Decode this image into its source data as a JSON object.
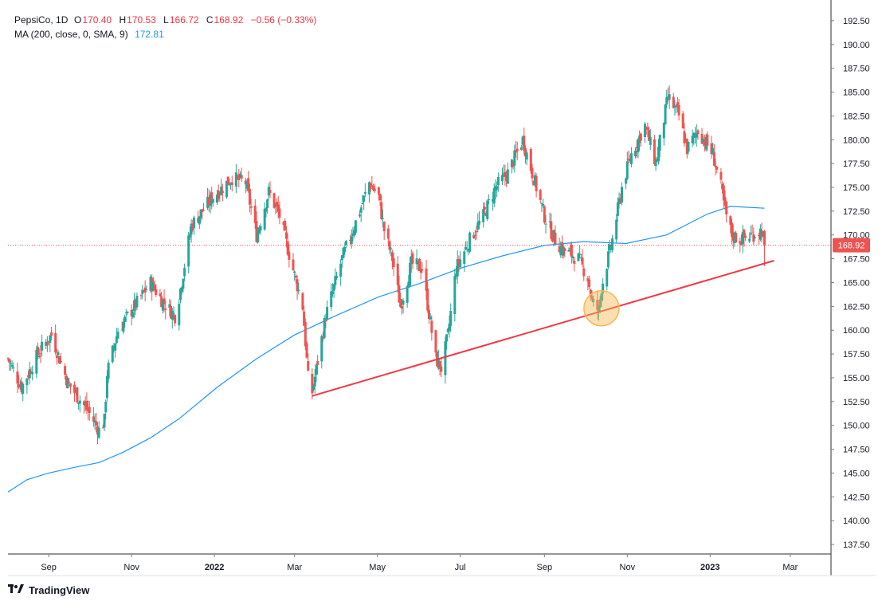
{
  "header": {
    "symbol": "PepsiCo, 1D",
    "open_label": "O",
    "open": "170.40",
    "high_label": "H",
    "high": "170.53",
    "low_label": "L",
    "low": "166.72",
    "close_label": "C",
    "close": "168.92",
    "change": "−0.56 (−0.33%)",
    "ma_label": "MA (200, close, 0, SMA, 9)",
    "ma_value": "172.81"
  },
  "brand": {
    "name": "TradingView"
  },
  "colors": {
    "up": "#26a69a",
    "down": "#ef5350",
    "ma": "#2196f3",
    "trendline": "#f23645",
    "highlight": "#f7b955",
    "price_tag": "#ef5350"
  },
  "chart_data": {
    "type": "candlestick",
    "title": "PepsiCo, 1D",
    "interval": "1D",
    "y_axis": {
      "position": "right",
      "ticks": [
        "192.50",
        "190.00",
        "187.50",
        "185.00",
        "182.50",
        "180.00",
        "177.50",
        "175.00",
        "172.50",
        "170.00",
        "167.50",
        "165.00",
        "162.50",
        "160.00",
        "157.50",
        "155.00",
        "152.50",
        "150.00",
        "147.50",
        "145.00",
        "142.50",
        "140.00",
        "137.50"
      ],
      "range": [
        136.5,
        194.0
      ]
    },
    "x_axis": {
      "ticks": [
        {
          "label": "Sep",
          "date": "2021-09-01",
          "bold": false
        },
        {
          "label": "Nov",
          "date": "2021-11-01",
          "bold": false
        },
        {
          "label": "2022",
          "date": "2022-01-01",
          "bold": true
        },
        {
          "label": "Mar",
          "date": "2022-03-01",
          "bold": false
        },
        {
          "label": "May",
          "date": "2022-05-01",
          "bold": false
        },
        {
          "label": "Jul",
          "date": "2022-07-01",
          "bold": false
        },
        {
          "label": "Sep",
          "date": "2022-09-01",
          "bold": false
        },
        {
          "label": "Nov",
          "date": "2022-11-01",
          "bold": false
        },
        {
          "label": "2023",
          "date": "2023-01-01",
          "bold": true
        },
        {
          "label": "Mar",
          "date": "2023-03-01",
          "bold": false
        }
      ],
      "range": [
        "2021-08-02",
        "2023-03-31"
      ]
    },
    "price_path": [
      [
        "2021-08-02",
        157.0
      ],
      [
        "2021-08-12",
        154.0
      ],
      [
        "2021-08-24",
        157.5
      ],
      [
        "2021-09-03",
        159.5
      ],
      [
        "2021-09-15",
        154.5
      ],
      [
        "2021-09-30",
        151.5
      ],
      [
        "2021-10-08",
        149.5
      ],
      [
        "2021-10-12",
        150.5
      ],
      [
        "2021-10-14",
        155.5
      ],
      [
        "2021-10-22",
        160.0
      ],
      [
        "2021-11-08",
        163.5
      ],
      [
        "2021-11-15",
        165.0
      ],
      [
        "2021-11-24",
        163.0
      ],
      [
        "2021-12-03",
        161.5
      ],
      [
        "2021-12-06",
        163.5
      ],
      [
        "2021-12-15",
        171.0
      ],
      [
        "2021-12-31",
        174.0
      ],
      [
        "2022-01-07",
        175.0
      ],
      [
        "2022-01-14",
        176.0
      ],
      [
        "2022-01-24",
        175.5
      ],
      [
        "2022-02-01",
        170.0
      ],
      [
        "2022-02-10",
        174.5
      ],
      [
        "2022-02-18",
        172.0
      ],
      [
        "2022-02-25",
        168.0
      ],
      [
        "2022-03-07",
        162.5
      ],
      [
        "2022-03-11",
        155.0
      ],
      [
        "2022-03-14",
        153.5
      ],
      [
        "2022-03-24",
        161.5
      ],
      [
        "2022-04-05",
        167.5
      ],
      [
        "2022-04-18",
        172.5
      ],
      [
        "2022-04-25",
        175.5
      ],
      [
        "2022-05-02",
        174.0
      ],
      [
        "2022-05-06",
        170.5
      ],
      [
        "2022-05-12",
        167.5
      ],
      [
        "2022-05-18",
        162.5
      ],
      [
        "2022-05-26",
        167.0
      ],
      [
        "2022-06-03",
        166.5
      ],
      [
        "2022-06-13",
        157.0
      ],
      [
        "2022-06-17",
        156.0
      ],
      [
        "2022-06-22",
        159.5
      ],
      [
        "2022-06-28",
        166.5
      ],
      [
        "2022-07-08",
        169.5
      ],
      [
        "2022-07-18",
        172.0
      ],
      [
        "2022-07-27",
        175.0
      ],
      [
        "2022-08-05",
        176.5
      ],
      [
        "2022-08-16",
        180.0
      ],
      [
        "2022-08-24",
        176.0
      ],
      [
        "2022-09-01",
        172.0
      ],
      [
        "2022-09-07",
        170.0
      ],
      [
        "2022-09-14",
        168.5
      ],
      [
        "2022-09-26",
        167.5
      ],
      [
        "2022-10-03",
        165.5
      ],
      [
        "2022-10-06",
        163.0
      ],
      [
        "2022-10-11",
        162.0
      ],
      [
        "2022-10-13",
        164.5
      ],
      [
        "2022-10-21",
        169.5
      ],
      [
        "2022-10-28",
        175.0
      ],
      [
        "2022-11-04",
        178.5
      ],
      [
        "2022-11-14",
        181.5
      ],
      [
        "2022-11-22",
        177.5
      ],
      [
        "2022-12-01",
        184.5
      ],
      [
        "2022-12-09",
        182.5
      ],
      [
        "2022-12-15",
        179.0
      ],
      [
        "2022-12-23",
        181.0
      ],
      [
        "2023-01-03",
        178.5
      ],
      [
        "2023-01-09",
        175.0
      ],
      [
        "2023-01-12",
        172.5
      ],
      [
        "2023-01-17",
        170.0
      ],
      [
        "2023-01-23",
        169.5
      ],
      [
        "2023-02-01",
        170.0
      ],
      [
        "2023-02-08",
        170.5
      ],
      [
        "2023-02-10",
        168.92
      ]
    ],
    "ma_path": [
      [
        "2021-08-02",
        143.0
      ],
      [
        "2021-08-16",
        144.3
      ],
      [
        "2021-09-01",
        145.0
      ],
      [
        "2021-09-20",
        145.6
      ],
      [
        "2021-10-08",
        146.1
      ],
      [
        "2021-10-26",
        147.2
      ],
      [
        "2021-11-15",
        148.7
      ],
      [
        "2021-12-06",
        150.7
      ],
      [
        "2022-01-03",
        154.0
      ],
      [
        "2022-02-01",
        157.0
      ],
      [
        "2022-03-01",
        159.5
      ],
      [
        "2022-03-31",
        161.5
      ],
      [
        "2022-05-02",
        163.5
      ],
      [
        "2022-06-01",
        164.9
      ],
      [
        "2022-07-01",
        166.5
      ],
      [
        "2022-08-01",
        167.8
      ],
      [
        "2022-09-01",
        168.9
      ],
      [
        "2022-09-30",
        169.3
      ],
      [
        "2022-10-31",
        169.1
      ],
      [
        "2022-11-30",
        170.0
      ],
      [
        "2022-12-30",
        172.2
      ],
      [
        "2023-01-16",
        173.0
      ],
      [
        "2023-02-10",
        172.81
      ]
    ],
    "trendline": {
      "start": [
        "2022-03-14",
        153.1
      ],
      "end": [
        "2023-02-17",
        167.3
      ]
    },
    "highlight_circle": {
      "date": "2022-10-13",
      "price": 162.3
    },
    "last_price": "168.92",
    "current_price_line": 168.92
  }
}
